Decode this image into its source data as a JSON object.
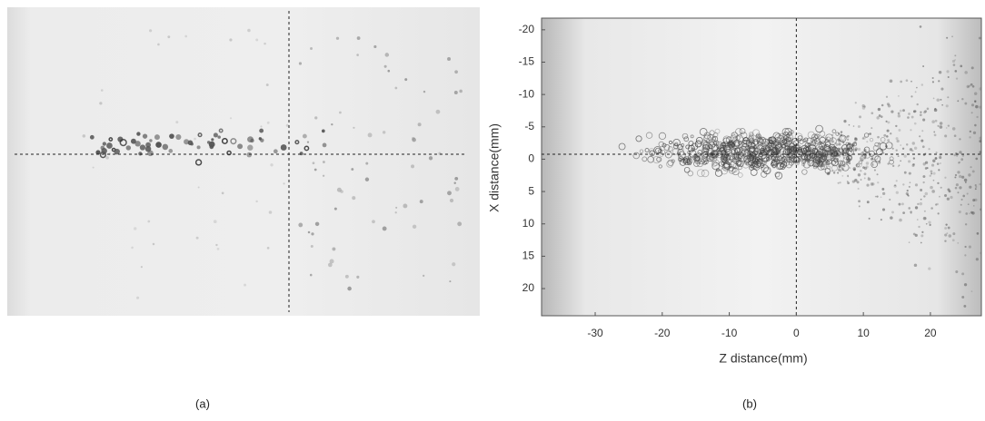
{
  "figure": {
    "panels": [
      {
        "label": "(a)"
      },
      {
        "label": "(b)",
        "xlabel": "Z distance(mm)",
        "ylabel": "X distance(mm)",
        "xlim": [
          -38,
          27.6
        ],
        "xticks": [
          -30,
          -20,
          -10,
          0,
          10,
          20
        ],
        "ylim": [
          -21.8,
          24.2
        ],
        "yticks": [
          -20,
          -15,
          -10,
          -5,
          0,
          5,
          10,
          15,
          20
        ]
      }
    ]
  }
}
